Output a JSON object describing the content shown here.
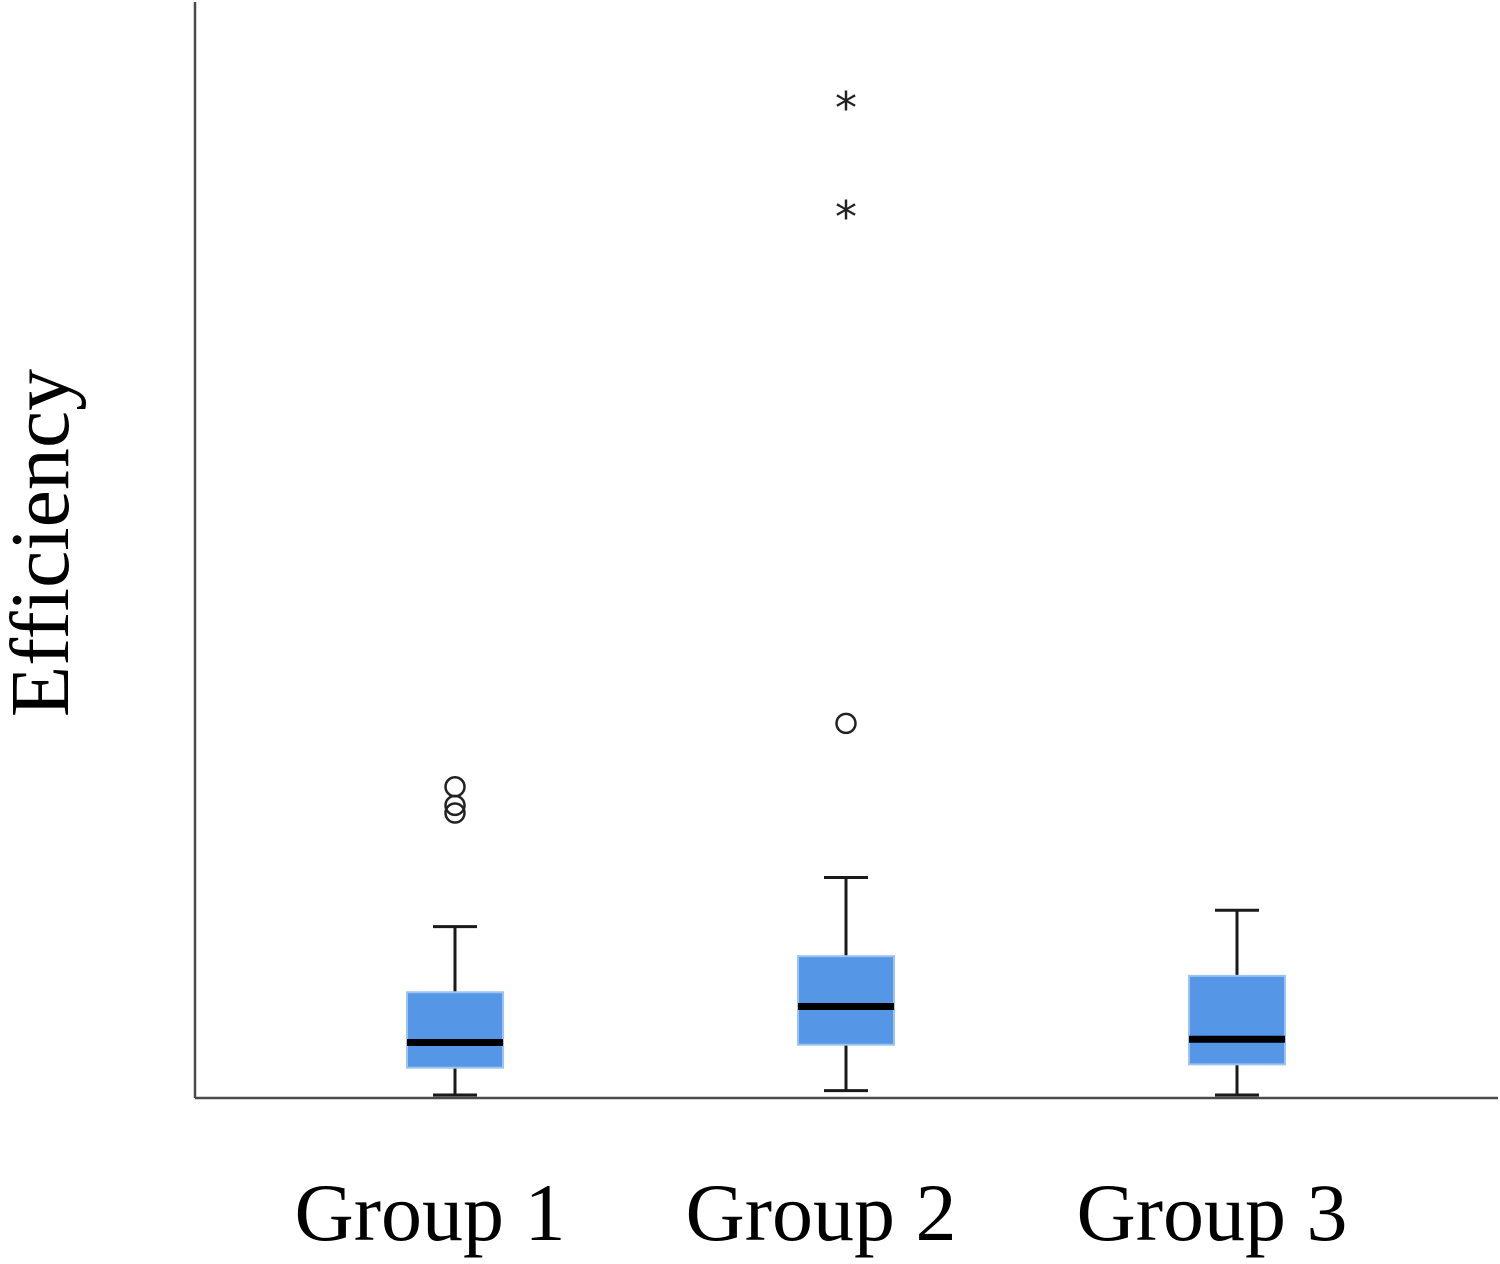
{
  "chart_data": {
    "type": "box",
    "title": "",
    "xlabel": "",
    "ylabel": "Efficiency",
    "categories": [
      "Group 1",
      "Group 2",
      "Group 3"
    ],
    "ylim": [
      0,
      100
    ],
    "y_ticks_shown": false,
    "grid": false,
    "legend": "none",
    "box_color": "#5596e6",
    "box_edge_color": "#9dc3f0",
    "groups": [
      {
        "category": "Group 1",
        "whisker_low": 0,
        "q1": 2.5,
        "median": 4.8,
        "q3": 9.4,
        "whisker_high": 15.4,
        "outliers": [
          {
            "value": 25.8,
            "marker": "circle"
          },
          {
            "value": 26.5,
            "marker": "circle"
          },
          {
            "value": 28.2,
            "marker": "circle"
          }
        ]
      },
      {
        "category": "Group 2",
        "whisker_low": 0.4,
        "q1": 4.6,
        "median": 8.1,
        "q3": 12.7,
        "whisker_high": 19.9,
        "outliers": [
          {
            "value": 34.0,
            "marker": "circle"
          },
          {
            "value": 80.5,
            "marker": "star"
          },
          {
            "value": 90.5,
            "marker": "star"
          }
        ]
      },
      {
        "category": "Group 3",
        "whisker_low": 0,
        "q1": 2.8,
        "median": 5.1,
        "q3": 10.9,
        "whisker_high": 16.9,
        "outliers": []
      }
    ]
  }
}
